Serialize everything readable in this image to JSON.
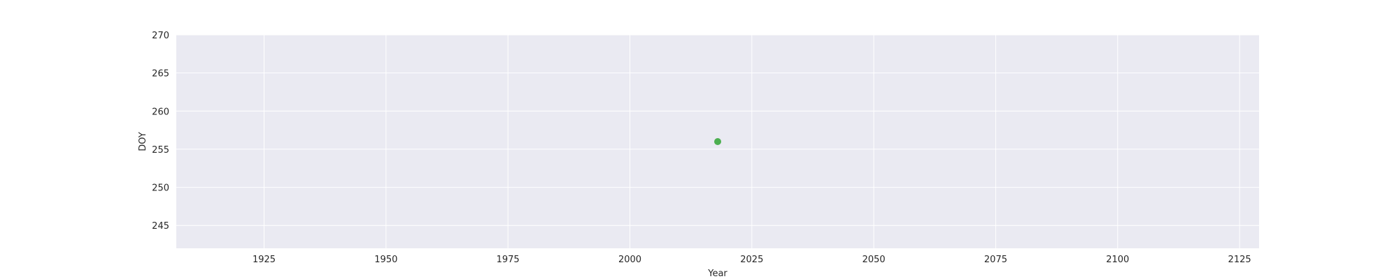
{
  "chart_data": {
    "type": "scatter",
    "xlabel": "Year",
    "ylabel": "DOY",
    "xlim": [
      1907,
      2129
    ],
    "ylim": [
      242,
      270
    ],
    "xticks": [
      1925,
      1950,
      1975,
      2000,
      2025,
      2050,
      2075,
      2100,
      2125
    ],
    "yticks": [
      245,
      250,
      255,
      260,
      265,
      270
    ],
    "grid": true,
    "colors": {
      "background": "#eaeaf2",
      "grid": "#ffffff",
      "point": "#4caf50"
    },
    "series": [
      {
        "x": [
          2018
        ],
        "y": [
          256
        ]
      }
    ]
  }
}
